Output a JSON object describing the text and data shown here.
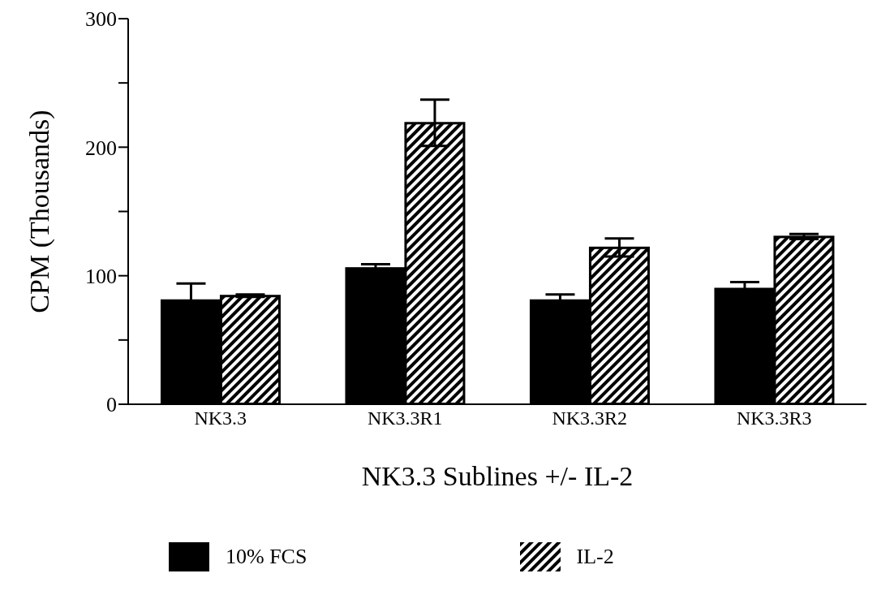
{
  "chart_data": {
    "type": "bar",
    "xlabel": "NK3.3 Sublines +/- IL-2",
    "ylabel": "CPM (Thousands)",
    "categories": [
      "NK3.3",
      "NK3.3R1",
      "NK3.3R2",
      "NK3.3R3"
    ],
    "series": [
      {
        "name": "10% FCS",
        "color": "#000000",
        "values": [
          81,
          106,
          81,
          90
        ],
        "errors": [
          13,
          3,
          4.5,
          5
        ]
      },
      {
        "name": "IL-2",
        "color": "#000000",
        "values": [
          84.5,
          219,
          122,
          130.5
        ],
        "errors": [
          1,
          18,
          7,
          2
        ]
      }
    ],
    "ylim": [
      0,
      300
    ],
    "yticks": [
      0,
      {
        "value": 50,
        "label": null
      },
      100,
      {
        "value": 150,
        "label": null
      },
      200,
      {
        "value": 250,
        "label": null
      },
      300
    ],
    "grid": false,
    "legend": "bottom"
  }
}
